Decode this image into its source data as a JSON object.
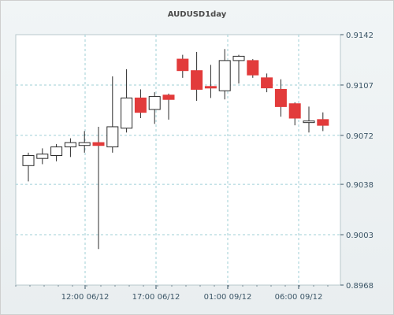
{
  "chart_data": {
    "type": "candlestick",
    "title": "AUDUSD1day",
    "y_ticks": [
      "0.9142",
      "0.9107",
      "0.9072",
      "0.9038",
      "0.9003",
      "0.8968"
    ],
    "ylim": [
      0.8968,
      0.9142
    ],
    "x_ticks": [
      "12:00 06/12",
      "17:00 06/12",
      "01:00 09/12",
      "06:00 09/12"
    ],
    "grid": true,
    "colors": {
      "up": "#ffffff",
      "down": "#e23b3b",
      "wick": "#2b2b2b",
      "grid": "#9fcfd6"
    },
    "candles": [
      {
        "open": 0.9051,
        "high": 0.906,
        "low": 0.904,
        "close": 0.9058
      },
      {
        "open": 0.9056,
        "high": 0.9063,
        "low": 0.9052,
        "close": 0.9059
      },
      {
        "open": 0.9058,
        "high": 0.9066,
        "low": 0.9054,
        "close": 0.9064
      },
      {
        "open": 0.9064,
        "high": 0.907,
        "low": 0.9057,
        "close": 0.9067
      },
      {
        "open": 0.9065,
        "high": 0.9075,
        "low": 0.906,
        "close": 0.9067
      },
      {
        "open": 0.9067,
        "high": 0.9078,
        "low": 0.8993,
        "close": 0.9065
      },
      {
        "open": 0.9064,
        "high": 0.9113,
        "low": 0.906,
        "close": 0.9078
      },
      {
        "open": 0.9077,
        "high": 0.9118,
        "low": 0.9074,
        "close": 0.9098
      },
      {
        "open": 0.9098,
        "high": 0.9104,
        "low": 0.9084,
        "close": 0.9088
      },
      {
        "open": 0.909,
        "high": 0.9102,
        "low": 0.908,
        "close": 0.9099
      },
      {
        "open": 0.91,
        "high": 0.9101,
        "low": 0.9083,
        "close": 0.9097
      },
      {
        "open": 0.9125,
        "high": 0.9128,
        "low": 0.9112,
        "close": 0.9117
      },
      {
        "open": 0.9117,
        "high": 0.913,
        "low": 0.9096,
        "close": 0.9104
      },
      {
        "open": 0.9106,
        "high": 0.9121,
        "low": 0.9098,
        "close": 0.9105
      },
      {
        "open": 0.9103,
        "high": 0.9132,
        "low": 0.9097,
        "close": 0.9124
      },
      {
        "open": 0.9124,
        "high": 0.9128,
        "low": 0.9108,
        "close": 0.9127
      },
      {
        "open": 0.9124,
        "high": 0.9125,
        "low": 0.9112,
        "close": 0.9114
      },
      {
        "open": 0.9112,
        "high": 0.9115,
        "low": 0.9102,
        "close": 0.9105
      },
      {
        "open": 0.9104,
        "high": 0.9111,
        "low": 0.9085,
        "close": 0.9092
      },
      {
        "open": 0.9094,
        "high": 0.9095,
        "low": 0.9079,
        "close": 0.9084
      },
      {
        "open": 0.9082,
        "high": 0.9092,
        "low": 0.9074,
        "close": 0.9082
      },
      {
        "open": 0.9083,
        "high": 0.9088,
        "low": 0.9075,
        "close": 0.9079
      }
    ]
  }
}
